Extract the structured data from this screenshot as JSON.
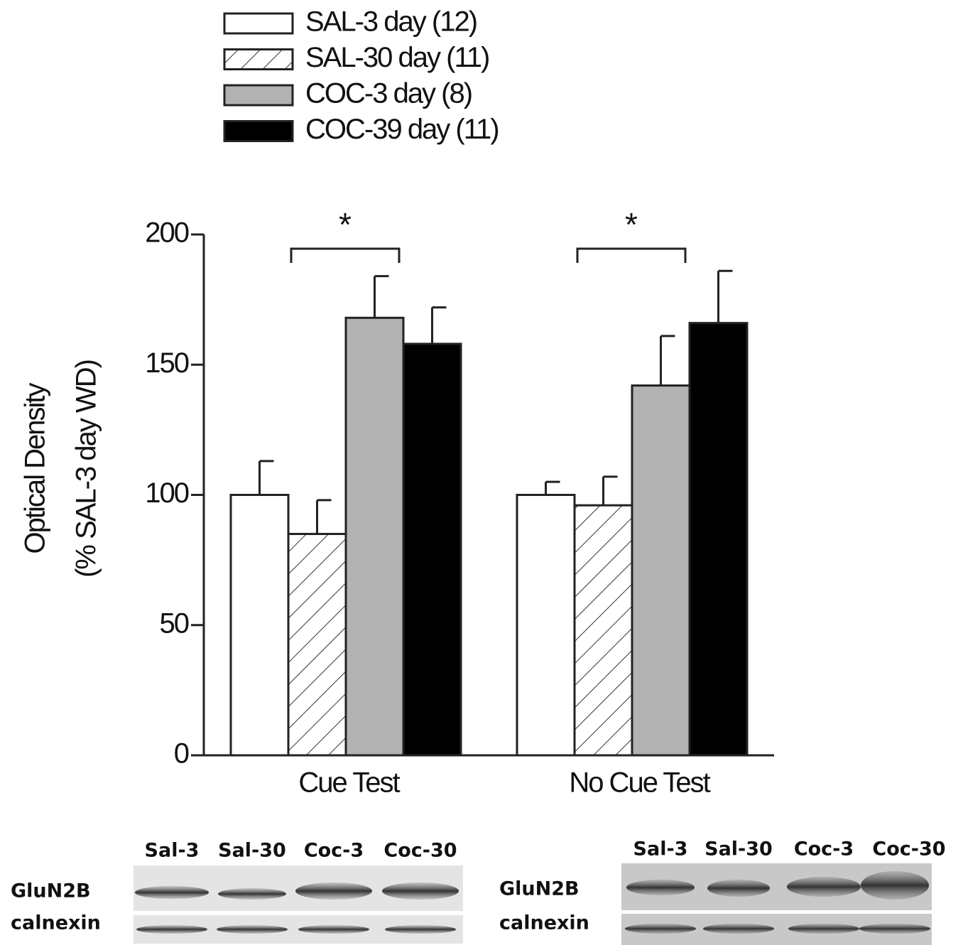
{
  "chart_data": {
    "type": "bar",
    "ylabel": [
      "Optical Density",
      "(% SAL-3 day WD)"
    ],
    "categories": [
      "Cue Test",
      "No Cue Test"
    ],
    "series": [
      {
        "name": "SAL-3 day (12)",
        "color": "#ffffff",
        "values": [
          100,
          100
        ],
        "errors": [
          13,
          5
        ]
      },
      {
        "name": "SAL-30 day (11)",
        "color": "#ffffff",
        "hatch": true,
        "values": [
          85,
          96
        ],
        "errors": [
          13,
          11
        ]
      },
      {
        "name": "COC-3 day (8)",
        "color": "#b2b2b2",
        "values": [
          168,
          142
        ],
        "errors": [
          16,
          19
        ]
      },
      {
        "name": "COC-39 day (11)",
        "color": "#000000",
        "values": [
          158,
          166
        ],
        "errors": [
          14,
          20
        ]
      }
    ],
    "ylim": [
      0,
      200
    ],
    "yticks": [
      0,
      50,
      100,
      150,
      200
    ],
    "annotations": [
      "*",
      "*"
    ]
  },
  "blots": [
    {
      "lanes": [
        "Sal-3",
        "Sal-30",
        "Coc-3",
        "Coc-30"
      ],
      "rows": [
        "GluN2B",
        "calnexin"
      ]
    },
    {
      "lanes": [
        "Sal-3",
        "Sal-30",
        "Coc-3",
        "Coc-30"
      ],
      "rows": [
        "GluN2B",
        "calnexin"
      ]
    }
  ]
}
